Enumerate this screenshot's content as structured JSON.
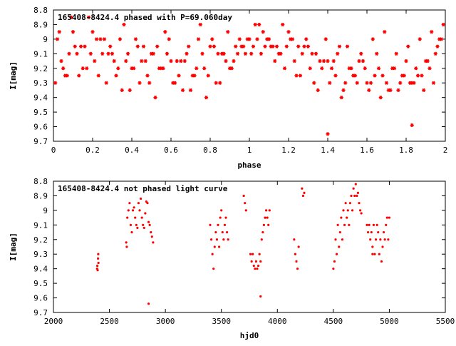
{
  "colors": {
    "marker": "#ff0000",
    "axis": "#000000",
    "background": "#ffffff"
  },
  "chart_data": [
    {
      "type": "scatter",
      "title": "165408-8424.4 phased with P=69.060day",
      "xlabel": "phase",
      "ylabel": "I[mag]",
      "xlim": [
        0,
        2
      ],
      "ylim": [
        8.8,
        9.7
      ],
      "y_inverted": true,
      "xticks": [
        0,
        0.2,
        0.4,
        0.6,
        0.8,
        1,
        1.2,
        1.4,
        1.6,
        1.8,
        2
      ],
      "xtick_labels": [
        "0",
        "0.2",
        "0.4",
        "0.6",
        "0.8",
        "1",
        "1.2",
        "1.4",
        "1.6",
        "1.8",
        "2"
      ],
      "yticks": [
        8.8,
        8.9,
        9,
        9.1,
        9.2,
        9.3,
        9.4,
        9.5,
        9.6,
        9.7
      ],
      "ytick_labels": [
        "8.8",
        "8.9",
        "9",
        "9.1",
        "9.2",
        "9.3",
        "9.4",
        "9.5",
        "9.6",
        "9.7"
      ],
      "grid": false,
      "marker": "asterisk",
      "series": [
        {
          "x": [
            0.02,
            0.05,
            0.08,
            0.1,
            0.13,
            0.16,
            0.18,
            0.21,
            0.24,
            0.27,
            0.3,
            0.33,
            0.36,
            0.39,
            0.42,
            0.45,
            0.48,
            0.5,
            0.53,
            0.56,
            0.59,
            0.62,
            0.65,
            0.68,
            0.71,
            0.74,
            0.77,
            0.8,
            0.83,
            0.86,
            0.89,
            0.92,
            0.95,
            0.98,
            1.02,
            1.05,
            1.08,
            1.1,
            1.13,
            1.16,
            1.18,
            1.21,
            1.24,
            1.27,
            1.3,
            1.33,
            1.36,
            1.39,
            1.42,
            1.45,
            1.48,
            1.5,
            1.53,
            1.56,
            1.59,
            1.62,
            1.65,
            1.68,
            1.71,
            1.74,
            1.77,
            1.8,
            1.83,
            1.86,
            1.89,
            1.92,
            1.95,
            1.98,
            0.01,
            0.04,
            0.07,
            0.11,
            0.15,
            0.19,
            0.23,
            0.26,
            0.31,
            0.35,
            0.38,
            0.41,
            0.44,
            0.47,
            0.52,
            0.55,
            0.58,
            0.61,
            0.64,
            0.67,
            0.7,
            0.73,
            0.76,
            0.79,
            0.82,
            0.85,
            0.88,
            0.91,
            0.94,
            0.97,
            1.01,
            1.04,
            1.07,
            1.11,
            1.15,
            1.19,
            1.23,
            1.26,
            1.31,
            1.35,
            1.38,
            1.41,
            1.44,
            1.47,
            1.52,
            1.55,
            1.58,
            1.61,
            1.64,
            1.67,
            1.7,
            1.73,
            1.76,
            1.79,
            1.82,
            1.85,
            1.88,
            1.91,
            1.94,
            1.97,
            0.03,
            0.09,
            0.14,
            0.2,
            0.25,
            0.29,
            0.34,
            0.4,
            0.46,
            0.51,
            0.57,
            0.63,
            0.69,
            0.75,
            0.81,
            0.87,
            0.93,
            0.99,
            1.03,
            1.09,
            1.14,
            1.2,
            1.25,
            1.29,
            1.34,
            1.4,
            1.46,
            1.51,
            1.57,
            1.63,
            1.69,
            1.75,
            1.81,
            1.87,
            1.93,
            1.99,
            0.06,
            0.12,
            0.17,
            0.22,
            0.28,
            0.32,
            0.37,
            0.43,
            0.49,
            0.54,
            0.6,
            0.66,
            0.72,
            0.78,
            0.84,
            0.9,
            0.96,
            1.0,
            1.06,
            1.12,
            1.17,
            1.22,
            1.28,
            1.32,
            1.37,
            1.43,
            1.49,
            1.54,
            1.6,
            1.66,
            1.72,
            1.78,
            1.84,
            1.9,
            1.96,
            1.4,
            1.83
          ],
          "y": [
            9.0,
            9.2,
            9.1,
            8.95,
            9.25,
            9.05,
            8.85,
            9.15,
            9.0,
            9.3,
            9.1,
            9.2,
            8.9,
            9.35,
            9.0,
            9.15,
            9.25,
            9.1,
            9.05,
            9.2,
            9.0,
            9.3,
            9.15,
            9.1,
            9.25,
            9.0,
            9.2,
            9.05,
            9.3,
            9.1,
            8.95,
            9.15,
            9.0,
            9.1,
            9.05,
            8.9,
            9.05,
            9.0,
            9.15,
            9.1,
            9.2,
            9.0,
            9.25,
            9.1,
            9.05,
            9.3,
            9.15,
            9.0,
            9.2,
            9.1,
            9.35,
            9.05,
            9.25,
            9.15,
            9.2,
            9.3,
            9.1,
            9.25,
            9.35,
            9.2,
            9.3,
            9.15,
            9.3,
            9.25,
            9.35,
            9.2,
            9.1,
            9.0,
            9.3,
            9.15,
            9.25,
            9.05,
            9.2,
            9.1,
            9.25,
            9.0,
            9.15,
            9.35,
            9.1,
            9.2,
            9.3,
            9.15,
            9.4,
            9.2,
            9.1,
            9.3,
            9.25,
            9.15,
            9.35,
            9.2,
            9.1,
            9.25,
            9.05,
            9.3,
            9.15,
            9.2,
            9.1,
            9.05,
            9.1,
            9.0,
            8.95,
            9.05,
            9.1,
            9.05,
            9.15,
            9.25,
            9.2,
            9.35,
            9.15,
            9.3,
            9.25,
            9.4,
            9.2,
            9.3,
            9.15,
            9.35,
            9.25,
            9.4,
            9.3,
            9.2,
            9.35,
            9.25,
            9.3,
            9.2,
            9.25,
            9.15,
            9.3,
            9.0,
            8.95,
            8.85,
            9.05,
            8.95,
            9.1,
            9.05,
            9.0,
            9.2,
            9.05,
            9.1,
            8.95,
            9.15,
            9.05,
            8.9,
            9.0,
            9.1,
            9.05,
            9.0,
            8.9,
            9.0,
            9.05,
            8.95,
            9.05,
            9.0,
            9.1,
            9.15,
            9.05,
            9.2,
            9.1,
            9.0,
            8.95,
            9.1,
            9.05,
            9.0,
            8.95,
            8.9,
            9.25,
            9.1,
            9.2,
            9.0,
            9.1,
            9.25,
            9.15,
            9.05,
            9.3,
            9.2,
            9.15,
            9.35,
            9.25,
            9.4,
            9.1,
            9.2,
            9.05,
            9.0,
            9.1,
            9.05,
            8.9,
            9.0,
            9.05,
            9.1,
            9.2,
            9.15,
            9.3,
            9.25,
            9.3,
            9.2,
            9.35,
            9.25,
            9.3,
            9.15,
            9.05,
            9.65,
            9.59
          ]
        }
      ]
    },
    {
      "type": "scatter",
      "title": "165408-8424.4 not phased light curve",
      "xlabel": "hjd0",
      "ylabel": "I[mag]",
      "xlim": [
        2000,
        5500
      ],
      "ylim": [
        8.8,
        9.7
      ],
      "y_inverted": true,
      "xticks": [
        2000,
        2500,
        3000,
        3500,
        4000,
        4500,
        5000,
        5500
      ],
      "xtick_labels": [
        "2000",
        "2500",
        "3000",
        "3500",
        "4000",
        "4500",
        "5000",
        "5500"
      ],
      "yticks": [
        8.8,
        8.9,
        9,
        9.1,
        9.2,
        9.3,
        9.4,
        9.5,
        9.6,
        9.7
      ],
      "ytick_labels": [
        "8.8",
        "8.9",
        "9",
        "9.1",
        "9.2",
        "9.3",
        "9.4",
        "9.5",
        "9.6",
        "9.7"
      ],
      "grid": false,
      "marker": "dot",
      "series": [
        {
          "x": [
            2390,
            2392,
            2395,
            2398,
            2400,
            2402,
            2650,
            2655,
            2660,
            2670,
            2680,
            2690,
            2700,
            2710,
            2720,
            2730,
            2740,
            2750,
            2760,
            2770,
            2780,
            2790,
            2800,
            2810,
            2820,
            2830,
            2840,
            2850,
            2860,
            2870,
            2880,
            2890,
            2850,
            3400,
            3410,
            3420,
            3430,
            3440,
            3450,
            3460,
            3470,
            3480,
            3490,
            3500,
            3510,
            3520,
            3530,
            3540,
            3550,
            3560,
            3700,
            3710,
            3720,
            3760,
            3770,
            3780,
            3790,
            3800,
            3810,
            3820,
            3830,
            3840,
            3850,
            3860,
            3870,
            3880,
            3890,
            3900,
            3910,
            3920,
            3930,
            3850,
            4150,
            4160,
            4170,
            4180,
            4190,
            4220,
            4230,
            4240,
            4500,
            4510,
            4520,
            4530,
            4540,
            4550,
            4560,
            4570,
            4580,
            4590,
            4600,
            4610,
            4620,
            4630,
            4640,
            4650,
            4660,
            4670,
            4680,
            4690,
            4700,
            4710,
            4720,
            4730,
            4740,
            4750,
            4800,
            4810,
            4820,
            4830,
            4840,
            4850,
            4860,
            4870,
            4880,
            4890,
            4900,
            4910,
            4920,
            4930,
            4940,
            4950,
            4960,
            4970,
            4980,
            4990,
            5000,
            4850
          ],
          "y": [
            9.4,
            9.38,
            9.41,
            9.33,
            9.3,
            9.36,
            9.22,
            9.25,
            9.05,
            9.0,
            8.95,
            9.1,
            9.15,
            9.0,
            8.98,
            9.05,
            9.1,
            9.12,
            8.95,
            9.0,
            8.92,
            9.05,
            9.1,
            9.12,
            9.02,
            8.94,
            8.95,
            9.08,
            9.1,
            9.15,
            9.18,
            9.22,
            9.64,
            9.1,
            9.2,
            9.3,
            9.4,
            9.25,
            9.15,
            9.2,
            9.1,
            9.25,
            9.05,
            9.0,
            9.15,
            9.2,
            9.1,
            9.05,
            9.15,
            9.2,
            8.9,
            8.95,
            9.0,
            9.3,
            9.35,
            9.3,
            9.38,
            9.4,
            9.35,
            9.4,
            9.38,
            9.3,
            9.35,
            9.2,
            9.15,
            9.1,
            9.05,
            9.0,
            9.05,
            9.1,
            9.0,
            9.59,
            9.2,
            9.3,
            9.35,
            9.4,
            9.25,
            8.85,
            8.9,
            8.88,
            9.4,
            9.35,
            9.2,
            9.3,
            9.1,
            9.25,
            9.15,
            9.05,
            9.2,
            9.0,
            9.1,
            8.95,
            9.05,
            9.0,
            9.1,
            8.95,
            8.9,
            9.0,
            8.85,
            8.9,
            8.82,
            8.9,
            8.88,
            8.95,
            9.0,
            9.02,
            9.1,
            9.15,
            9.1,
            9.2,
            9.15,
            9.25,
            9.1,
            9.3,
            9.2,
            9.1,
            9.15,
            9.3,
            9.2,
            9.35,
            9.25,
            9.15,
            9.2,
            9.1,
            9.05,
            9.2,
            9.05,
            9.3
          ]
        }
      ]
    }
  ]
}
